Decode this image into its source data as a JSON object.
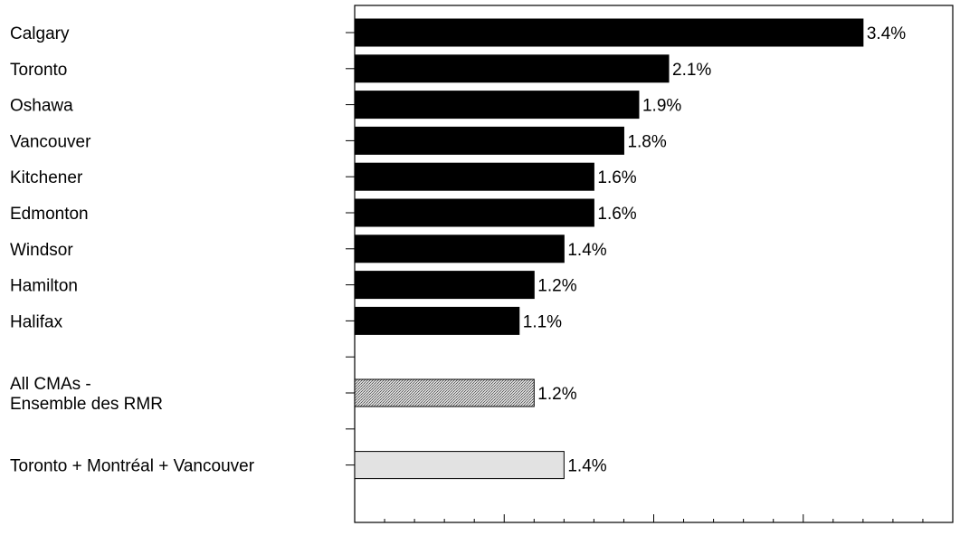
{
  "chart_data": {
    "type": "bar",
    "orientation": "horizontal",
    "xlim": [
      0,
      4.0
    ],
    "x_ticks": [
      "0.0%",
      "1.0%",
      "2.0%",
      "3.0%",
      "4.0%"
    ],
    "x_tick_values": [
      0,
      1,
      2,
      3,
      4
    ],
    "grid": false,
    "legend": "none",
    "value_format": "percent_1dp",
    "colors": {
      "city": "#000000",
      "all_cmas": "#a8a8a8",
      "big_three": "#e2e2e2",
      "frame": "#000000"
    },
    "bars": [
      {
        "label": [
          "Calgary"
        ],
        "value": 3.4,
        "label_text": "3.4%",
        "style": "city"
      },
      {
        "label": [
          "Toronto"
        ],
        "value": 2.1,
        "label_text": "2.1%",
        "style": "city"
      },
      {
        "label": [
          "Oshawa"
        ],
        "value": 1.9,
        "label_text": "1.9%",
        "style": "city"
      },
      {
        "label": [
          "Vancouver"
        ],
        "value": 1.8,
        "label_text": "1.8%",
        "style": "city"
      },
      {
        "label": [
          "Kitchener"
        ],
        "value": 1.6,
        "label_text": "1.6%",
        "style": "city"
      },
      {
        "label": [
          "Edmonton"
        ],
        "value": 1.6,
        "label_text": "1.6%",
        "style": "city"
      },
      {
        "label": [
          "Windsor"
        ],
        "value": 1.4,
        "label_text": "1.4%",
        "style": "city"
      },
      {
        "label": [
          "Hamilton"
        ],
        "value": 1.2,
        "label_text": "1.2%",
        "style": "city"
      },
      {
        "label": [
          "Halifax"
        ],
        "value": 1.1,
        "label_text": "1.1%",
        "style": "city"
      },
      {
        "label": [],
        "value": null,
        "label_text": "",
        "style": "gap"
      },
      {
        "label": [
          "All CMAs -",
          "Ensemble des RMR"
        ],
        "value": 1.2,
        "label_text": "1.2%",
        "style": "all_cmas"
      },
      {
        "label": [],
        "value": null,
        "label_text": "",
        "style": "gap"
      },
      {
        "label": [
          "Toronto + Montréal + Vancouver"
        ],
        "value": 1.4,
        "label_text": "1.4%",
        "style": "big_three"
      }
    ]
  }
}
